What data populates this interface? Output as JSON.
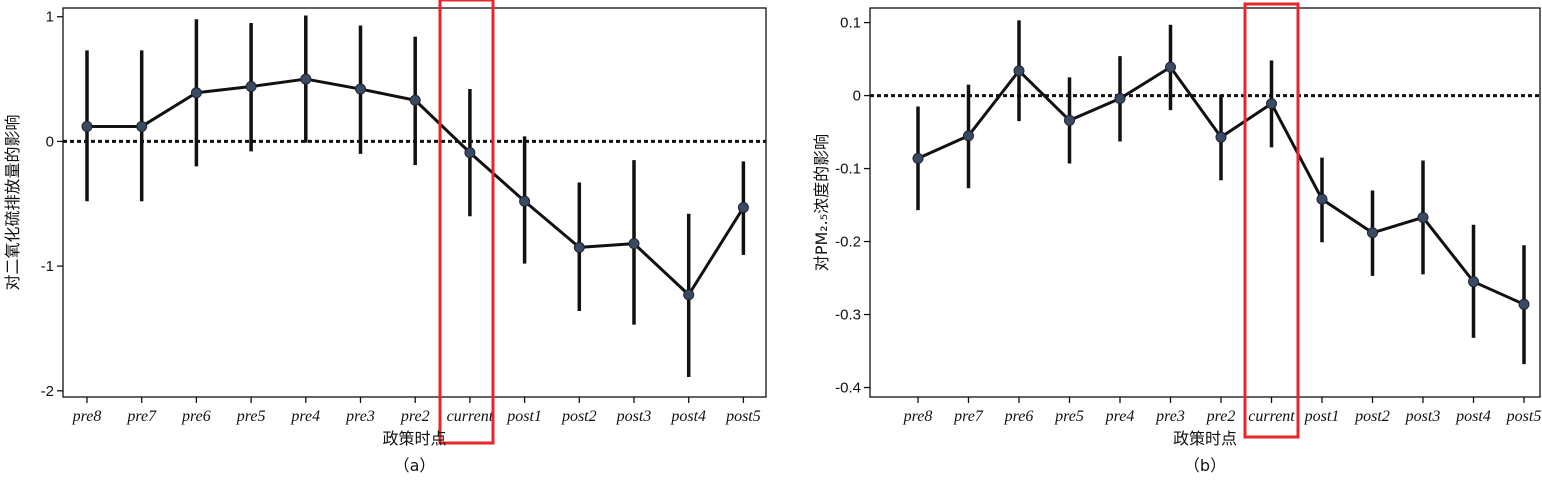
{
  "chart_data": [
    {
      "type": "line",
      "panel_label": "（a）",
      "xlabel": "政策时点",
      "ylabel": "对二氧化硫排放量的影响",
      "categories": [
        "pre8",
        "pre7",
        "pre6",
        "pre5",
        "pre4",
        "pre3",
        "pre2",
        "current",
        "post1",
        "post2",
        "post3",
        "post4",
        "post5"
      ],
      "series": [
        {
          "values": [
            0.12,
            0.12,
            0.39,
            0.44,
            0.5,
            0.42,
            0.33,
            -0.09,
            -0.48,
            -0.85,
            -0.82,
            -1.23,
            -0.53
          ],
          "lower": [
            -0.48,
            -0.48,
            -0.2,
            -0.08,
            -0.01,
            -0.1,
            -0.19,
            -0.6,
            -0.98,
            -1.36,
            -1.47,
            -1.89,
            -0.91
          ],
          "upper": [
            0.73,
            0.73,
            0.98,
            0.95,
            1.01,
            0.93,
            0.84,
            0.42,
            0.04,
            -0.33,
            -0.15,
            -0.58,
            -0.16
          ]
        }
      ],
      "ylim": [
        -2.05,
        1.07
      ],
      "yticks": [
        -2,
        -1,
        0,
        1
      ],
      "ytick_labels": [
        "-2",
        "-1",
        "0",
        "1"
      ],
      "reference_line": 0,
      "highlight_category": "current",
      "colors": {
        "line": "#111111",
        "marker": "#3b4a63",
        "highlight": "#e8262a"
      }
    },
    {
      "type": "line",
      "panel_label": "（b）",
      "xlabel": "政策时点",
      "ylabel": "对PM₂.₅浓度的影响",
      "categories": [
        "pre8",
        "pre7",
        "pre6",
        "pre5",
        "pre4",
        "pre3",
        "pre2",
        "current",
        "post1",
        "post2",
        "post3",
        "post4",
        "post5"
      ],
      "series": [
        {
          "values": [
            -0.086,
            -0.055,
            0.034,
            -0.034,
            -0.004,
            0.039,
            -0.057,
            -0.011,
            -0.142,
            -0.188,
            -0.167,
            -0.255,
            -0.286
          ],
          "lower": [
            -0.157,
            -0.127,
            -0.035,
            -0.093,
            -0.063,
            -0.02,
            -0.116,
            -0.071,
            -0.201,
            -0.247,
            -0.245,
            -0.332,
            -0.368
          ],
          "upper": [
            -0.015,
            0.015,
            0.103,
            0.025,
            0.054,
            0.097,
            0.001,
            0.048,
            -0.085,
            -0.13,
            -0.089,
            -0.177,
            -0.205
          ]
        }
      ],
      "ylim": [
        -0.413,
        0.12
      ],
      "yticks": [
        -0.4,
        -0.3,
        -0.2,
        -0.1,
        0,
        0.1
      ],
      "ytick_labels": [
        "-0.4",
        "-0.3",
        "-0.2",
        "-0.1",
        "0",
        "0.1"
      ],
      "reference_line": 0,
      "highlight_category": "current",
      "colors": {
        "line": "#111111",
        "marker": "#3b4a63",
        "highlight": "#e8262a"
      }
    }
  ]
}
